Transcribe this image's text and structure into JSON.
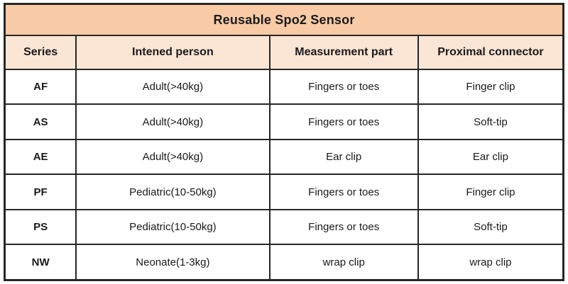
{
  "table": {
    "title": "Reusable Spo2 Sensor",
    "columns": {
      "series": "Series",
      "person": "Intened person",
      "part": "Measurement part",
      "connector": "Proximal connector"
    },
    "rows": [
      {
        "series": "AF",
        "person": "Adult(>40kg)",
        "part": "Fingers or toes",
        "connector": "Finger clip"
      },
      {
        "series": "AS",
        "person": "Adult(>40kg)",
        "part": "Fingers or toes",
        "connector": "Soft-tip"
      },
      {
        "series": "AE",
        "person": "Adult(>40kg)",
        "part": "Ear clip",
        "connector": "Ear clip"
      },
      {
        "series": "PF",
        "person": "Pediatric(10-50kg)",
        "part": "Fingers or toes",
        "connector": "Finger clip"
      },
      {
        "series": "PS",
        "person": "Pediatric(10-50kg)",
        "part": "Fingers or toes",
        "connector": "Soft-tip"
      },
      {
        "series": "NW",
        "person": "Neonate(1-3kg)",
        "part": "wrap clip",
        "connector": "wrap clip"
      }
    ],
    "colors": {
      "title_bg": "#f8cba6",
      "header_bg": "#fbe5d5",
      "border": "#262626",
      "text": "#1a1a1a",
      "row_bg": "#ffffff"
    }
  }
}
